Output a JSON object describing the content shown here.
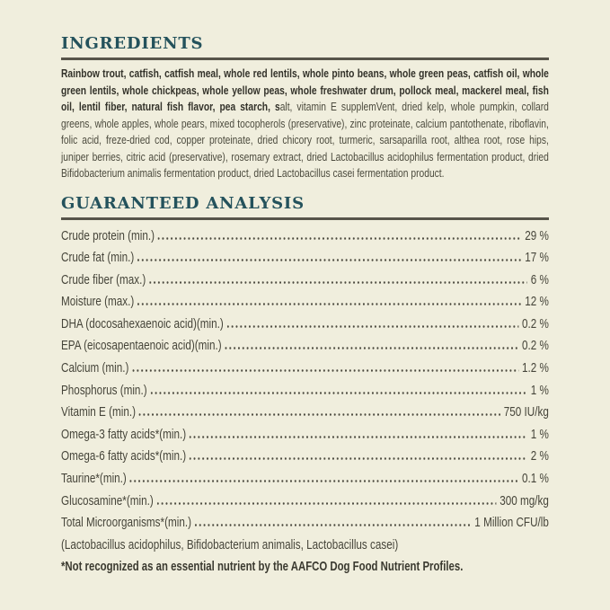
{
  "page": {
    "background_color": "#f0eedd",
    "heading_color": "#24525c",
    "rule_color": "#57544a",
    "body_text_color": "#46453a",
    "dot_leader_color": "#4b493e"
  },
  "ingredients": {
    "title": "INGREDIENTS",
    "bold_text": "Rainbow trout, catfish, catfish meal, whole red lentils, whole pinto beans, whole green peas, catfish oil, whole green lentils, whole chickpeas, whole yellow peas, whole freshwater drum, pollock meal, mackerel meal, fish oil, lentil fiber, natural fish flavor, pea starch, s",
    "regular_text": "alt, vitamin E supplemVent, dried kelp, whole pumpkin, collard greens, whole apples, whole pears, mixed tocopherols (preservative), zinc proteinate, calcium pantothenate, riboflavin, folic acid, freze-dried cod, copper proteinate, dried chicory root, turmeric, sarsaparilla root, althea root, rose hips, juniper berries, citric acid (preservative), rosemary extract, dried Lactobacillus acidophilus fermentation product, dried Bifidobacterium animalis fermentation product, dried Lactobacillus casei fermentation product."
  },
  "guaranteed_analysis": {
    "title": "GUARANTEED ANALYSIS",
    "rows": [
      {
        "label": "Crude protein (min.)",
        "value": "29 %"
      },
      {
        "label": "Crude fat (min.)",
        "value": "17 %"
      },
      {
        "label": "Crude fiber (max.)",
        "value": "6 %"
      },
      {
        "label": "Moisture (max.)",
        "value": "12 %"
      },
      {
        "label": "DHA (docosahexaenoic acid)(min.)",
        "value": "0.2 %"
      },
      {
        "label": "EPA (eicosapentaenoic acid)(min.)",
        "value": "0.2 %"
      },
      {
        "label": "Calcium (min.)",
        "value": "1.2 %"
      },
      {
        "label": "Phosphorus (min.)",
        "value": "1 %"
      },
      {
        "label": "Vitamin E (min.)",
        "value": "750 IU/kg"
      },
      {
        "label": "Omega-3 fatty acids*(min.)",
        "value": "1 %"
      },
      {
        "label": "Omega-6 fatty acids*(min.)",
        "value": "2 %"
      },
      {
        "label": "Taurine*(min.)",
        "value": "0.1 %"
      },
      {
        "label": "Glucosamine*(min.)",
        "value": "300 mg/kg"
      },
      {
        "label": "Total Microorganisms*(min.)",
        "value": "1 Million CFU/lb"
      }
    ],
    "microorganisms_detail": "(Lactobacillus acidophilus, Bifidobacterium animalis, Lactobacillus casei)",
    "footnote": "*Not recognized as an essential nutrient by the AAFCO Dog Food Nutrient Profiles."
  }
}
